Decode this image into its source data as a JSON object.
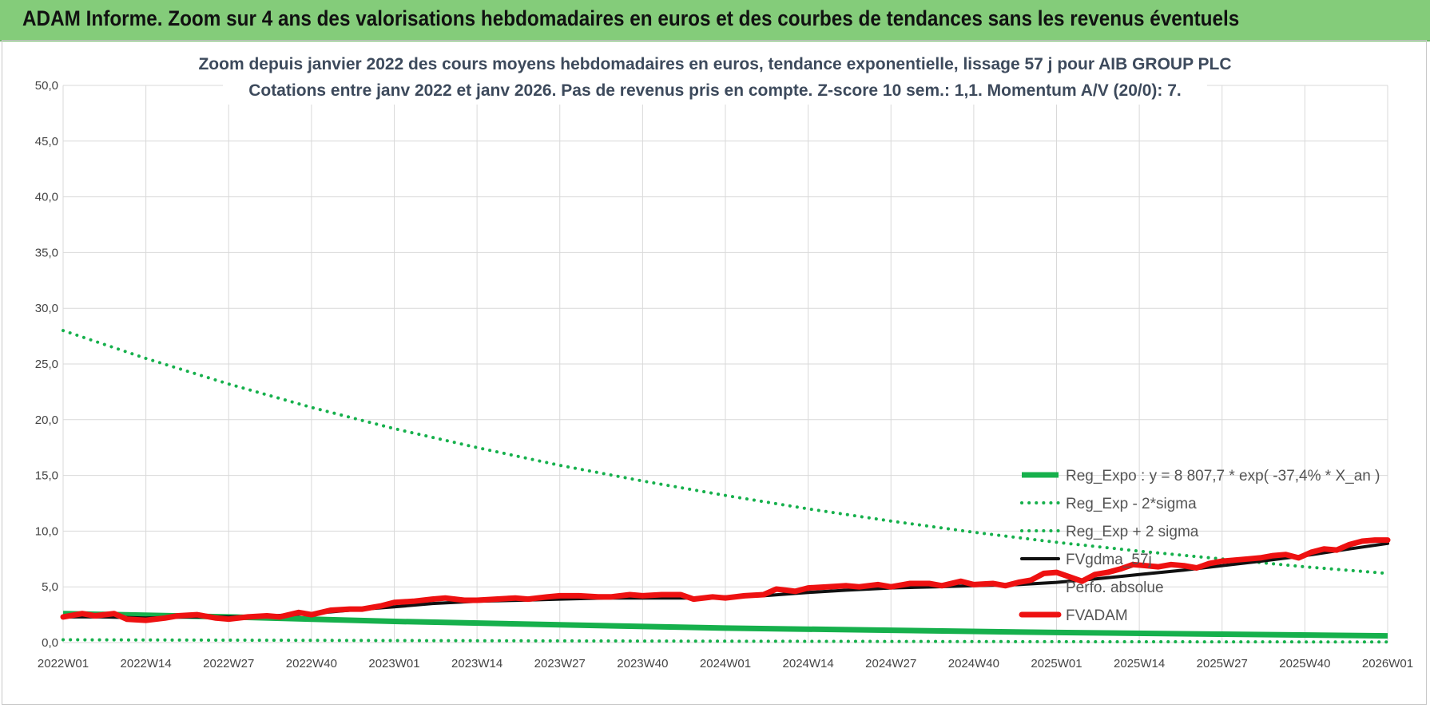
{
  "page_title": "ADAM Informe. Zoom sur 4 ans des valorisations hebdomadaires en euros et des courbes de tendances sans les revenus éventuels",
  "colors": {
    "banner": "#84cc7a",
    "green": "#16b04c",
    "black": "#111111",
    "red": "#ee1111",
    "grid": "#d9d9d9"
  },
  "chart_data": {
    "type": "line",
    "title_lines": [
      "Zoom depuis janvier 2022 des cours moyens hebdomadaires en euros, tendance exponentielle, lissage 57 j pour AIB GROUP PLC",
      "Cotations entre janv 2022 et janv 2026. Pas de revenus pris en compte. Z-score 10 sem.: 1,1. Momentum A/V (20/0): 7."
    ],
    "y_ticks": [
      "0,0",
      "5,0",
      "10,0",
      "15,0",
      "20,0",
      "25,0",
      "30,0",
      "35,0",
      "40,0",
      "45,0",
      "50,0"
    ],
    "ylim": [
      0,
      50
    ],
    "x_ticks": [
      "2022W01",
      "2022W14",
      "2022W27",
      "2022W40",
      "2023W01",
      "2023W14",
      "2023W27",
      "2023W40",
      "2024W01",
      "2024W14",
      "2024W27",
      "2024W40",
      "2025W01",
      "2025W14",
      "2025W27",
      "2025W40",
      "2026W01"
    ],
    "x_range_weeks": [
      0,
      208
    ],
    "legend": [
      "Reg_Expo : y = 8 807,7 * exp( -37,4% *  X_an )",
      "Reg_Exp - 2*sigma",
      "Reg_Exp + 2 sigma",
      "FVgdma_57j",
      "Perfo. absolue",
      "FVADAM"
    ],
    "series": [
      {
        "name": "Reg_Expo",
        "style": "solid-green",
        "x": [
          0,
          26,
          52,
          78,
          104,
          130,
          156,
          182,
          208
        ],
        "values": [
          2.6,
          2.3,
          1.9,
          1.6,
          1.3,
          1.1,
          0.9,
          0.75,
          0.6
        ]
      },
      {
        "name": "Reg_Exp - 2*sigma",
        "style": "dotted-green",
        "x": [
          0,
          52,
          104,
          156,
          208
        ],
        "values": [
          0.25,
          0.18,
          0.12,
          0.08,
          0.05
        ]
      },
      {
        "name": "Reg_Exp + 2 sigma",
        "style": "dotted-green",
        "x": [
          0,
          13,
          26,
          39,
          52,
          65,
          78,
          91,
          104,
          117,
          130,
          143,
          156,
          169,
          182,
          195,
          208
        ],
        "values": [
          28.0,
          25.5,
          23.2,
          21.1,
          19.2,
          17.5,
          15.9,
          14.5,
          13.2,
          12.0,
          10.9,
          9.9,
          9.0,
          8.2,
          7.5,
          6.8,
          6.2
        ]
      },
      {
        "name": "FVgdma_57j",
        "style": "solid-black",
        "x": [
          0,
          6,
          13,
          20,
          26,
          33,
          39,
          45,
          52,
          58,
          65,
          72,
          78,
          85,
          91,
          98,
          104,
          110,
          117,
          123,
          130,
          137,
          143,
          150,
          156,
          162,
          169,
          176,
          182,
          188,
          195,
          202,
          208
        ],
        "values": [
          2.3,
          2.3,
          2.2,
          2.3,
          2.3,
          2.4,
          2.6,
          2.9,
          3.2,
          3.5,
          3.7,
          3.8,
          3.9,
          4.0,
          4.0,
          4.0,
          4.1,
          4.2,
          4.5,
          4.7,
          4.9,
          5.0,
          5.1,
          5.2,
          5.4,
          5.7,
          6.1,
          6.5,
          6.9,
          7.3,
          7.8,
          8.4,
          8.9
        ]
      },
      {
        "name": "FVADAM",
        "style": "solid-red",
        "x": [
          0,
          3,
          5,
          8,
          10,
          13,
          16,
          18,
          21,
          24,
          26,
          29,
          32,
          34,
          37,
          39,
          42,
          45,
          47,
          50,
          52,
          55,
          58,
          60,
          63,
          65,
          68,
          71,
          73,
          76,
          78,
          81,
          84,
          86,
          89,
          91,
          94,
          97,
          99,
          102,
          104,
          107,
          110,
          112,
          115,
          117,
          120,
          123,
          125,
          128,
          130,
          133,
          136,
          138,
          141,
          143,
          146,
          148,
          150,
          152,
          154,
          156,
          158,
          160,
          162,
          164,
          166,
          168,
          170,
          172,
          174,
          176,
          178,
          180,
          182,
          184,
          186,
          188,
          190,
          192,
          194,
          196,
          198,
          200,
          202,
          204,
          206,
          208
        ],
        "values": [
          2.3,
          2.6,
          2.4,
          2.6,
          2.1,
          2.0,
          2.2,
          2.4,
          2.5,
          2.2,
          2.1,
          2.3,
          2.4,
          2.3,
          2.7,
          2.5,
          2.9,
          3.0,
          3.0,
          3.3,
          3.6,
          3.7,
          3.9,
          4.0,
          3.8,
          3.8,
          3.9,
          4.0,
          3.9,
          4.1,
          4.2,
          4.2,
          4.1,
          4.1,
          4.3,
          4.2,
          4.3,
          4.3,
          3.9,
          4.1,
          4.0,
          4.2,
          4.3,
          4.8,
          4.6,
          4.9,
          5.0,
          5.1,
          5.0,
          5.2,
          5.0,
          5.3,
          5.3,
          5.1,
          5.5,
          5.2,
          5.3,
          5.1,
          5.4,
          5.6,
          6.2,
          6.3,
          5.9,
          5.5,
          6.1,
          6.3,
          6.6,
          7.0,
          6.9,
          6.8,
          7.0,
          6.9,
          6.7,
          7.1,
          7.3,
          7.4,
          7.5,
          7.6,
          7.8,
          7.9,
          7.6,
          8.1,
          8.4,
          8.3,
          8.8,
          9.1,
          9.2,
          9.2
        ]
      }
    ]
  }
}
